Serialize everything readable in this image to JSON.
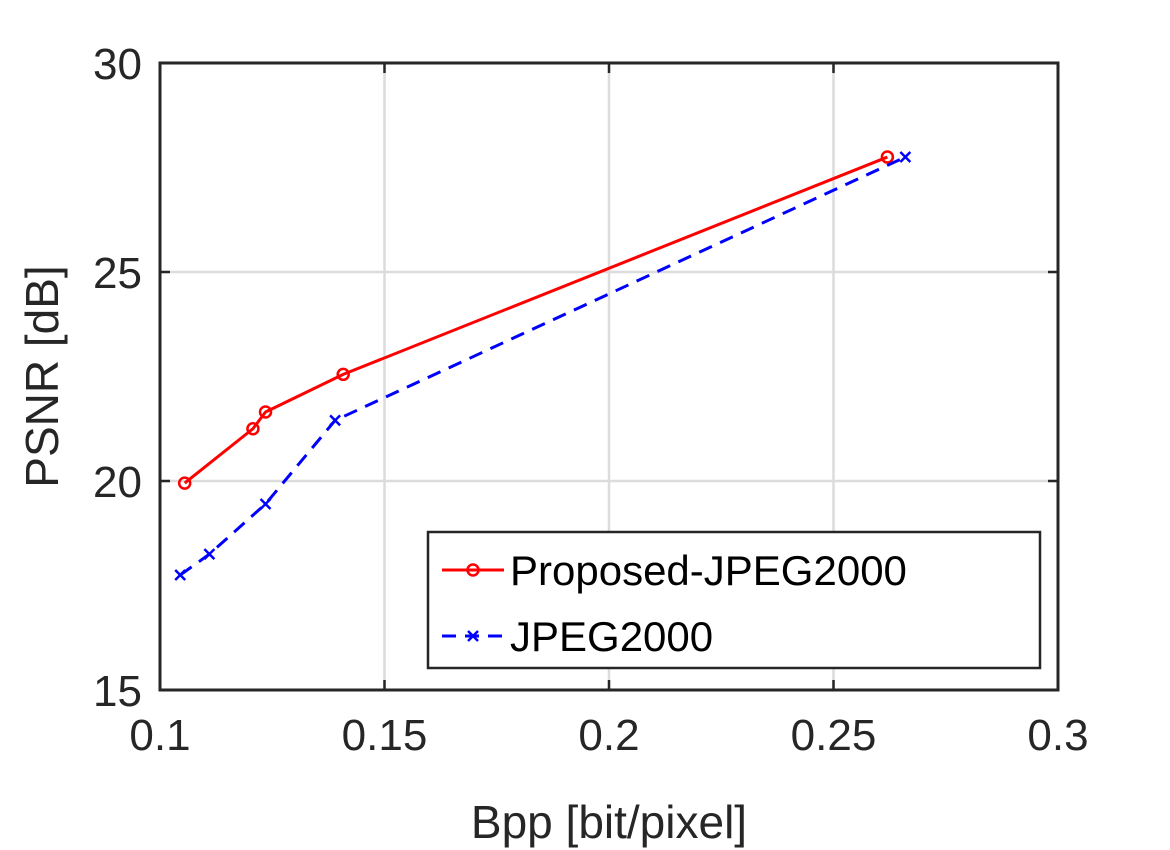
{
  "chart_data": {
    "type": "line",
    "xlabel": "Bpp [bit/pixel]",
    "ylabel": "PSNR [dB]",
    "xlim": [
      0.1,
      0.3
    ],
    "ylim": [
      15,
      30
    ],
    "xticks": [
      0.1,
      0.15,
      0.2,
      0.25,
      0.3
    ],
    "xtick_labels": [
      "0.1",
      "0.15",
      "0.2",
      "0.25",
      "0.3"
    ],
    "yticks": [
      15,
      20,
      25,
      30
    ],
    "ytick_labels": [
      "15",
      "20",
      "25",
      "30"
    ],
    "grid": true,
    "legend_position": "bottom-right",
    "series": [
      {
        "name": "Proposed-JPEG2000",
        "color": "#ff0000",
        "line_style": "solid",
        "marker": "circle",
        "x": [
          0.1055,
          0.1207,
          0.1235,
          0.1408,
          0.262
        ],
        "y": [
          19.95,
          21.25,
          21.65,
          22.55,
          27.75
        ]
      },
      {
        "name": "JPEG2000",
        "color": "#0000ff",
        "line_style": "dashed",
        "marker": "x",
        "x": [
          0.1045,
          0.111,
          0.1235,
          0.139,
          0.266
        ],
        "y": [
          17.75,
          18.25,
          19.45,
          21.45,
          27.75
        ]
      }
    ]
  }
}
